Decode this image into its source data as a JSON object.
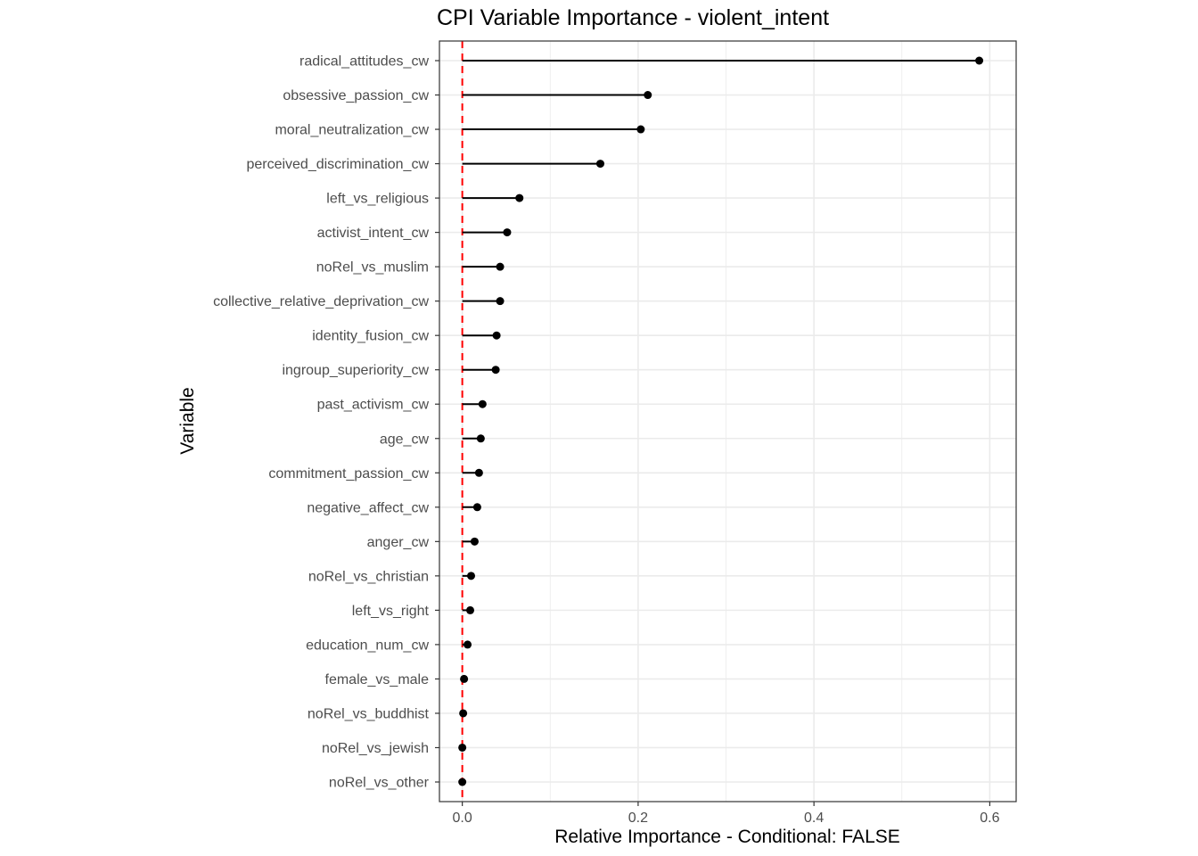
{
  "chart_data": {
    "type": "lollipop",
    "title": "CPI Variable Importance - violent_intent",
    "xlabel": "Relative Importance - Conditional: FALSE",
    "ylabel": "Variable",
    "xlim": [
      -0.026,
      0.63
    ],
    "x_ticks": [
      0.0,
      0.2,
      0.4,
      0.6
    ],
    "x_tick_labels": [
      "0.0",
      "0.2",
      "0.4",
      "0.6"
    ],
    "reference_line": {
      "x": 0,
      "color": "#ff0000",
      "style": "dashed"
    },
    "grid": true,
    "categories": [
      "radical_attitudes_cw",
      "obsessive_passion_cw",
      "moral_neutralization_cw",
      "perceived_discrimination_cw",
      "left_vs_religious",
      "activist_intent_cw",
      "noRel_vs_muslim",
      "collective_relative_deprivation_cw",
      "identity_fusion_cw",
      "ingroup_superiority_cw",
      "past_activism_cw",
      "age_cw",
      "commitment_passion_cw",
      "negative_affect_cw",
      "anger_cw",
      "noRel_vs_christian",
      "left_vs_right",
      "education_num_cw",
      "female_vs_male",
      "noRel_vs_buddhist",
      "noRel_vs_jewish",
      "noRel_vs_other"
    ],
    "values": [
      0.588,
      0.211,
      0.203,
      0.157,
      0.065,
      0.051,
      0.043,
      0.043,
      0.039,
      0.038,
      0.023,
      0.021,
      0.019,
      0.017,
      0.014,
      0.01,
      0.009,
      0.006,
      0.002,
      0.001,
      0.0,
      0.0
    ],
    "colors": {
      "stem": "#000000",
      "point": "#000000",
      "panel_border": "#333333",
      "grid": "#ebebeb",
      "reference": "#ff0000"
    }
  }
}
